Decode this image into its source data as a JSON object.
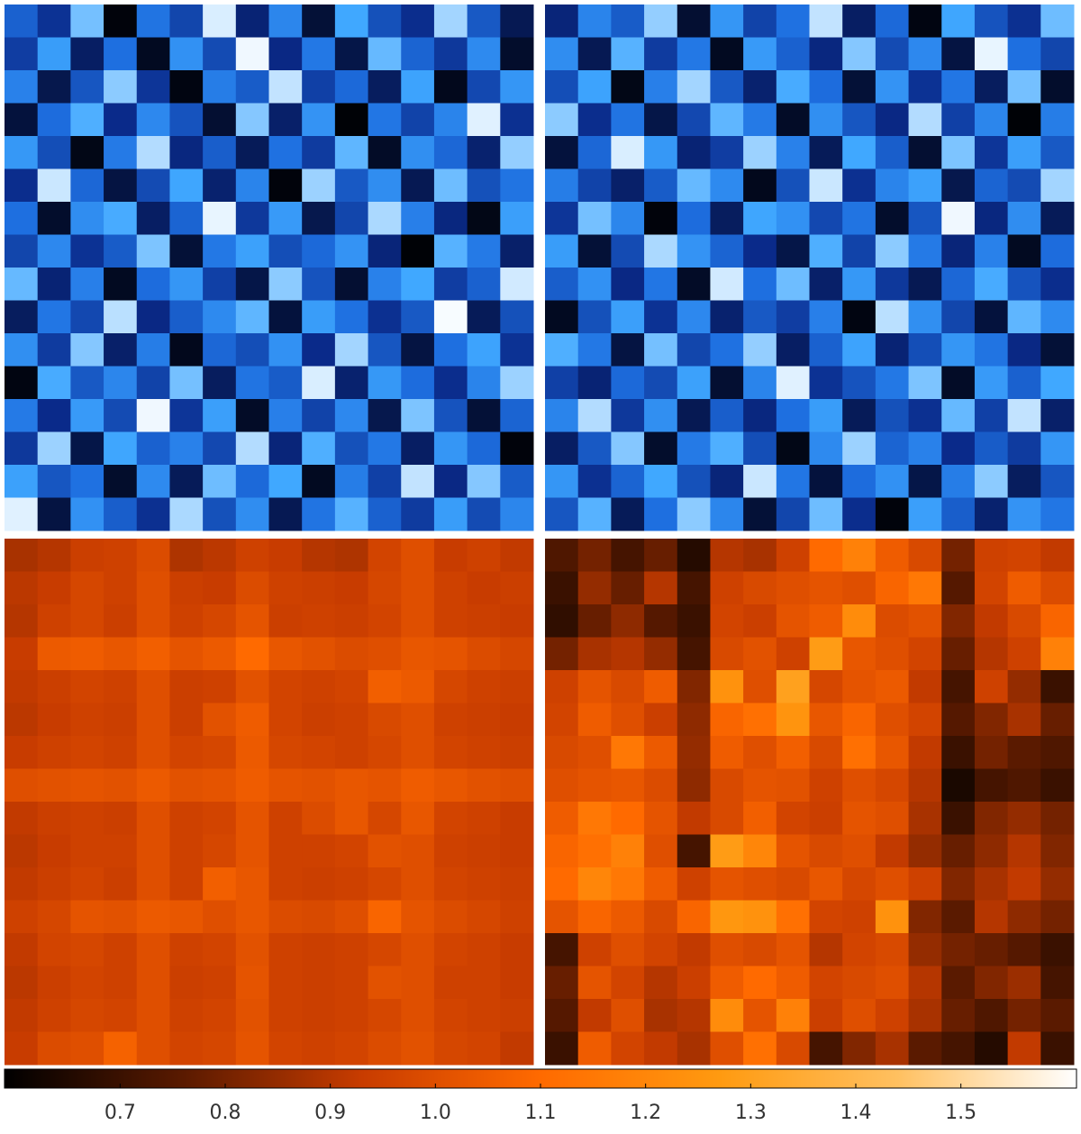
{
  "chart_data": [
    {
      "type": "heatmap",
      "clim": [
        0.6,
        1.6
      ],
      "colors": [
        "#000000",
        "#0a2a8a",
        "#1e6fe0",
        "#40a8ff",
        "#ffffff"
      ],
      "values": [
        [
          1.05,
          0.88,
          1.42,
          0.62,
          1.12,
          0.95,
          1.55,
          0.81,
          1.2,
          0.7,
          1.35,
          0.99,
          0.86,
          1.48,
          1.02,
          0.75
        ],
        [
          0.92,
          1.3,
          0.78,
          1.1,
          0.66,
          1.25,
          0.97,
          1.58,
          0.84,
          1.14,
          0.73,
          1.4,
          1.06,
          0.9,
          1.22,
          0.68
        ],
        [
          1.18,
          0.74,
          1.01,
          1.45,
          0.89,
          0.63,
          1.16,
          1.03,
          1.52,
          0.93,
          1.08,
          0.77,
          1.33,
          0.65,
          0.96,
          1.27
        ],
        [
          0.71,
          1.09,
          1.37,
          0.85,
          1.21,
          1.0,
          0.69,
          1.44,
          0.79,
          1.26,
          0.61,
          1.13,
          0.94,
          1.19,
          1.56,
          0.87
        ],
        [
          1.28,
          0.98,
          0.64,
          1.15,
          1.5,
          0.83,
          1.04,
          0.76,
          1.11,
          0.91,
          1.39,
          0.67,
          1.24,
          1.07,
          0.8,
          1.46
        ],
        [
          0.86,
          1.53,
          1.07,
          0.72,
          0.97,
          1.34,
          0.8,
          1.19,
          0.62,
          1.47,
          1.02,
          1.23,
          0.75,
          1.41,
          0.99,
          1.12
        ],
        [
          1.1,
          0.68,
          1.23,
          1.36,
          0.78,
          1.06,
          1.57,
          0.9,
          1.29,
          0.74,
          0.95,
          1.49,
          1.17,
          0.83,
          0.64,
          1.31
        ],
        [
          0.95,
          1.21,
          0.88,
          1.03,
          1.43,
          0.7,
          1.14,
          1.32,
          0.98,
          1.08,
          1.26,
          0.82,
          0.61,
          1.38,
          1.15,
          0.79
        ],
        [
          1.4,
          0.81,
          1.17,
          0.66,
          1.09,
          1.27,
          0.93,
          0.73,
          1.45,
          1.0,
          0.69,
          1.18,
          1.35,
          0.92,
          1.05,
          1.54
        ],
        [
          0.77,
          1.13,
          0.96,
          1.51,
          0.84,
          1.04,
          1.22,
          1.39,
          0.71,
          1.3,
          1.11,
          0.87,
          1.02,
          1.59,
          0.76,
          0.99
        ],
        [
          1.24,
          0.91,
          1.44,
          0.79,
          1.16,
          0.65,
          1.07,
          0.98,
          1.25,
          0.85,
          1.48,
          1.01,
          0.72,
          1.1,
          1.33,
          0.88
        ],
        [
          0.63,
          1.36,
          1.02,
          1.2,
          0.94,
          1.42,
          0.77,
          1.12,
          1.03,
          1.55,
          0.8,
          1.28,
          1.09,
          0.86,
          1.19,
          1.47
        ],
        [
          1.15,
          0.85,
          1.29,
          0.97,
          1.58,
          0.89,
          1.31,
          0.67,
          1.17,
          0.94,
          1.21,
          0.74,
          1.43,
          1.0,
          0.7,
          1.06
        ],
        [
          0.9,
          1.47,
          0.73,
          1.34,
          1.05,
          1.18,
          0.96,
          1.5,
          0.82,
          1.37,
          0.99,
          1.14,
          0.78,
          1.27,
          1.08,
          0.62
        ],
        [
          1.32,
          1.01,
          1.11,
          0.68,
          1.22,
          0.76,
          1.41,
          1.08,
          1.35,
          0.66,
          1.16,
          0.93,
          1.52,
          0.84,
          1.44,
          1.03
        ],
        [
          1.56,
          0.72,
          1.25,
          1.04,
          0.87,
          1.49,
          0.99,
          1.23,
          0.75,
          1.12,
          1.38,
          1.05,
          0.91,
          1.3,
          0.97,
          1.2
        ]
      ]
    },
    {
      "type": "heatmap",
      "clim": [
        0.6,
        1.6
      ],
      "colors": [
        "#000000",
        "#0a2a8a",
        "#1e6fe0",
        "#40a8ff",
        "#ffffff"
      ],
      "values": [
        [
          0.82,
          1.19,
          1.03,
          1.46,
          0.69,
          1.27,
          0.94,
          1.11,
          1.52,
          0.78,
          1.08,
          0.63,
          1.34,
          1.0,
          0.87,
          1.41
        ],
        [
          1.23,
          0.75,
          1.38,
          0.91,
          1.14,
          0.66,
          1.29,
          1.05,
          0.83,
          1.44,
          0.97,
          1.21,
          0.72,
          1.57,
          1.1,
          0.95
        ],
        [
          0.98,
          1.33,
          0.64,
          1.17,
          1.48,
          1.02,
          0.8,
          1.36,
          1.09,
          0.7,
          1.26,
          0.88,
          1.13,
          0.77,
          1.42,
          0.68
        ],
        [
          1.45,
          0.86,
          1.12,
          0.73,
          0.96,
          1.39,
          1.15,
          0.67,
          1.24,
          1.01,
          0.84,
          1.5,
          0.93,
          1.2,
          0.61,
          1.16
        ],
        [
          0.71,
          1.07,
          1.55,
          1.28,
          0.81,
          0.92,
          1.47,
          1.18,
          0.76,
          1.35,
          1.04,
          0.69,
          1.43,
          0.89,
          1.31,
          1.02
        ],
        [
          1.16,
          0.94,
          0.79,
          1.03,
          1.4,
          1.22,
          0.65,
          0.99,
          1.53,
          0.87,
          1.19,
          1.32,
          0.74,
          1.06,
          0.97,
          1.48
        ],
        [
          0.89,
          1.42,
          1.2,
          0.62,
          1.09,
          0.77,
          1.34,
          1.25,
          0.96,
          1.12,
          0.68,
          1.01,
          1.58,
          0.83,
          1.23,
          0.76
        ],
        [
          1.3,
          0.7,
          0.97,
          1.49,
          1.26,
          1.06,
          0.85,
          0.73,
          1.37,
          0.94,
          1.45,
          1.15,
          0.82,
          1.18,
          0.66,
          1.09
        ],
        [
          1.04,
          1.25,
          0.84,
          1.13,
          0.67,
          1.54,
          1.1,
          1.41,
          0.79,
          1.28,
          0.9,
          0.75,
          1.07,
          1.36,
          1.0,
          0.86
        ],
        [
          0.66,
          0.99,
          1.31,
          0.88,
          1.21,
          0.8,
          1.02,
          0.92,
          1.17,
          0.63,
          1.51,
          1.24,
          0.95,
          0.71,
          1.39,
          1.22
        ],
        [
          1.37,
          1.14,
          0.72,
          1.42,
          0.95,
          1.11,
          1.46,
          0.78,
          1.05,
          1.33,
          0.81,
          0.98,
          1.27,
          1.12,
          0.84,
          0.7
        ],
        [
          0.93,
          0.81,
          1.08,
          0.97,
          1.32,
          0.69,
          1.19,
          1.56,
          0.88,
          1.0,
          1.14,
          1.43,
          0.67,
          1.29,
          1.05,
          1.35
        ],
        [
          1.19,
          1.5,
          0.9,
          1.24,
          0.75,
          1.04,
          0.83,
          1.1,
          1.3,
          0.76,
          0.99,
          0.87,
          1.4,
          0.93,
          1.52,
          0.79
        ],
        [
          0.78,
          1.02,
          1.44,
          0.68,
          1.15,
          1.37,
          0.98,
          0.64,
          1.22,
          1.47,
          1.06,
          1.18,
          0.85,
          1.03,
          0.91,
          1.27
        ],
        [
          1.27,
          0.87,
          1.06,
          1.35,
          0.99,
          0.82,
          1.53,
          1.13,
          0.71,
          1.09,
          1.25,
          0.73,
          1.16,
          1.45,
          0.77,
          1.01
        ],
        [
          1.01,
          1.38,
          0.76,
          1.1,
          1.45,
          1.2,
          0.7,
          0.95,
          1.41,
          0.86,
          0.62,
          1.31,
          1.04,
          0.8,
          1.26,
          1.13
        ]
      ]
    },
    {
      "type": "heatmap",
      "clim": [
        0.59,
        1.61
      ],
      "colors": [
        "#000000",
        "#5a1a00",
        "#c83c00",
        "#ff6a00",
        "#ff9a10",
        "#ffc060",
        "#ffffff"
      ],
      "values": [
        [
          0.88,
          0.9,
          0.94,
          0.95,
          0.99,
          0.89,
          0.91,
          0.95,
          0.93,
          0.9,
          0.89,
          0.96,
          1.0,
          0.93,
          0.95,
          0.92
        ],
        [
          0.91,
          0.93,
          0.97,
          0.95,
          1.0,
          0.94,
          0.93,
          0.99,
          0.95,
          0.94,
          0.93,
          0.97,
          1.0,
          0.95,
          0.93,
          0.94
        ],
        [
          0.9,
          0.95,
          0.97,
          0.94,
          1.0,
          0.95,
          0.97,
          1.02,
          0.94,
          0.95,
          0.94,
          0.96,
          1.0,
          0.95,
          0.94,
          0.93
        ],
        [
          0.93,
          1.04,
          1.05,
          1.03,
          1.06,
          1.02,
          1.04,
          1.1,
          1.03,
          1.01,
          0.99,
          1.0,
          1.03,
          1.02,
          0.99,
          0.97
        ],
        [
          0.92,
          0.94,
          0.96,
          0.95,
          1.0,
          0.94,
          0.95,
          1.01,
          0.96,
          0.95,
          0.96,
          1.06,
          1.04,
          0.97,
          0.95,
          0.94
        ],
        [
          0.91,
          0.93,
          0.95,
          0.94,
          1.0,
          0.94,
          1.01,
          1.05,
          0.96,
          0.94,
          0.95,
          0.98,
          1.0,
          0.95,
          0.94,
          0.93
        ],
        [
          0.93,
          0.95,
          0.96,
          0.95,
          1.0,
          0.96,
          0.97,
          1.04,
          0.97,
          0.96,
          0.95,
          0.97,
          1.0,
          0.96,
          0.95,
          0.94
        ],
        [
          1.0,
          1.01,
          1.02,
          1.01,
          1.04,
          1.01,
          1.02,
          1.05,
          1.02,
          1.01,
          1.03,
          1.02,
          1.05,
          1.03,
          1.01,
          1.0
        ],
        [
          0.92,
          0.94,
          0.95,
          0.94,
          1.0,
          0.95,
          0.96,
          1.02,
          0.95,
          0.99,
          1.03,
          0.97,
          1.03,
          0.96,
          0.95,
          0.93
        ],
        [
          0.91,
          0.93,
          0.95,
          0.95,
          1.0,
          0.95,
          0.97,
          1.02,
          0.95,
          0.95,
          0.96,
          1.01,
          1.0,
          0.95,
          0.94,
          0.93
        ],
        [
          0.92,
          0.94,
          0.96,
          0.94,
          1.0,
          0.95,
          1.06,
          1.03,
          0.95,
          0.94,
          0.95,
          0.97,
          1.0,
          0.96,
          0.95,
          0.94
        ],
        [
          0.95,
          0.97,
          1.02,
          1.01,
          1.04,
          1.03,
          1.0,
          1.03,
          0.99,
          0.98,
          1.0,
          1.08,
          1.02,
          0.99,
          0.97,
          0.95
        ],
        [
          0.92,
          0.96,
          0.97,
          0.95,
          1.0,
          0.95,
          0.96,
          1.01,
          0.95,
          0.94,
          0.95,
          0.97,
          1.0,
          0.96,
          0.95,
          0.93
        ],
        [
          0.91,
          0.94,
          0.96,
          0.95,
          1.0,
          0.94,
          0.95,
          1.02,
          0.95,
          0.94,
          0.95,
          1.01,
          1.0,
          0.95,
          0.95,
          0.93
        ],
        [
          0.92,
          0.95,
          0.97,
          0.96,
          1.0,
          0.95,
          0.96,
          1.01,
          0.95,
          0.94,
          0.95,
          0.97,
          1.0,
          0.96,
          0.95,
          0.94
        ],
        [
          0.93,
          0.99,
          1.0,
          1.07,
          1.0,
          0.96,
          0.97,
          1.02,
          0.96,
          0.95,
          0.96,
          0.99,
          1.01,
          0.97,
          0.96,
          0.92
        ]
      ]
    },
    {
      "type": "heatmap",
      "clim": [
        0.59,
        1.61
      ],
      "colors": [
        "#000000",
        "#5a1a00",
        "#c83c00",
        "#ff6a00",
        "#ff9a10",
        "#ffc060",
        "#ffffff"
      ],
      "values": [
        [
          0.74,
          0.8,
          0.72,
          0.78,
          0.66,
          0.9,
          0.88,
          0.95,
          1.1,
          1.18,
          1.05,
          0.98,
          0.8,
          0.95,
          0.96,
          0.92
        ],
        [
          0.7,
          0.85,
          0.78,
          0.9,
          0.72,
          0.95,
          0.98,
          1.0,
          1.02,
          1.0,
          1.08,
          1.15,
          0.75,
          0.96,
          1.05,
          0.99
        ],
        [
          0.68,
          0.78,
          0.84,
          0.75,
          0.7,
          0.96,
          0.94,
          1.02,
          1.05,
          1.22,
          0.99,
          1.01,
          0.82,
          0.92,
          0.98,
          1.08
        ],
        [
          0.8,
          0.88,
          0.9,
          0.85,
          0.72,
          0.98,
          1.01,
          0.95,
          1.28,
          1.03,
          1.0,
          0.96,
          0.78,
          0.9,
          0.95,
          1.18
        ],
        [
          0.95,
          1.02,
          0.98,
          1.05,
          0.82,
          1.24,
          1.0,
          1.3,
          0.97,
          1.02,
          1.04,
          0.92,
          0.72,
          0.95,
          0.85,
          0.7
        ],
        [
          0.96,
          1.05,
          1.0,
          0.94,
          0.84,
          1.08,
          1.12,
          1.25,
          1.03,
          1.08,
          1.0,
          0.96,
          0.75,
          0.82,
          0.88,
          0.78
        ],
        [
          0.98,
          1.0,
          1.15,
          1.04,
          0.85,
          1.05,
          1.0,
          1.06,
          0.98,
          1.12,
          1.03,
          0.92,
          0.7,
          0.8,
          0.76,
          0.74
        ],
        [
          1.0,
          1.02,
          1.03,
          0.99,
          0.84,
          0.98,
          1.02,
          1.01,
          0.95,
          1.0,
          0.97,
          0.9,
          0.64,
          0.72,
          0.74,
          0.7
        ],
        [
          1.05,
          1.15,
          1.1,
          1.02,
          0.92,
          0.98,
          1.06,
          0.96,
          0.94,
          1.02,
          1.0,
          0.88,
          0.7,
          0.82,
          0.85,
          0.8
        ],
        [
          1.08,
          1.12,
          1.18,
          1.0,
          0.72,
          1.28,
          1.2,
          1.02,
          0.98,
          1.0,
          0.92,
          0.85,
          0.78,
          0.84,
          0.9,
          0.82
        ],
        [
          1.1,
          1.2,
          1.15,
          1.05,
          0.95,
          1.02,
          1.0,
          0.98,
          1.03,
          0.97,
          1.0,
          0.95,
          0.82,
          0.88,
          0.92,
          0.85
        ],
        [
          1.02,
          1.08,
          1.04,
          0.98,
          1.08,
          1.26,
          1.24,
          1.12,
          0.96,
          0.95,
          1.24,
          0.82,
          0.76,
          0.9,
          0.84,
          0.8
        ],
        [
          0.72,
          0.95,
          1.0,
          0.96,
          0.92,
          1.0,
          0.98,
          1.02,
          0.9,
          0.96,
          0.98,
          0.85,
          0.8,
          0.78,
          0.75,
          0.7
        ],
        [
          0.78,
          1.02,
          0.96,
          0.9,
          0.94,
          1.05,
          1.1,
          1.05,
          0.96,
          0.98,
          1.0,
          0.9,
          0.76,
          0.82,
          0.86,
          0.72
        ],
        [
          0.75,
          0.92,
          1.0,
          0.88,
          0.9,
          1.22,
          1.02,
          1.18,
          0.94,
          1.0,
          0.95,
          0.88,
          0.78,
          0.74,
          0.8,
          0.76
        ],
        [
          0.7,
          1.05,
          0.96,
          0.92,
          0.88,
          1.0,
          1.12,
          0.98,
          0.72,
          0.82,
          0.88,
          0.76,
          0.72,
          0.66,
          0.92,
          0.7
        ]
      ]
    }
  ],
  "colorbar": {
    "clim": [
      0.59,
      1.61
    ],
    "colors": [
      "#000000",
      "#5a1a00",
      "#c83c00",
      "#ff6a00",
      "#ff9a10",
      "#ffc060",
      "#ffffff"
    ],
    "ticks": [
      0.7,
      0.8,
      0.9,
      {
        "value": 1,
        "label": "1.0"
      },
      1.1,
      1.2,
      1.3,
      1.4,
      1.5
    ]
  }
}
